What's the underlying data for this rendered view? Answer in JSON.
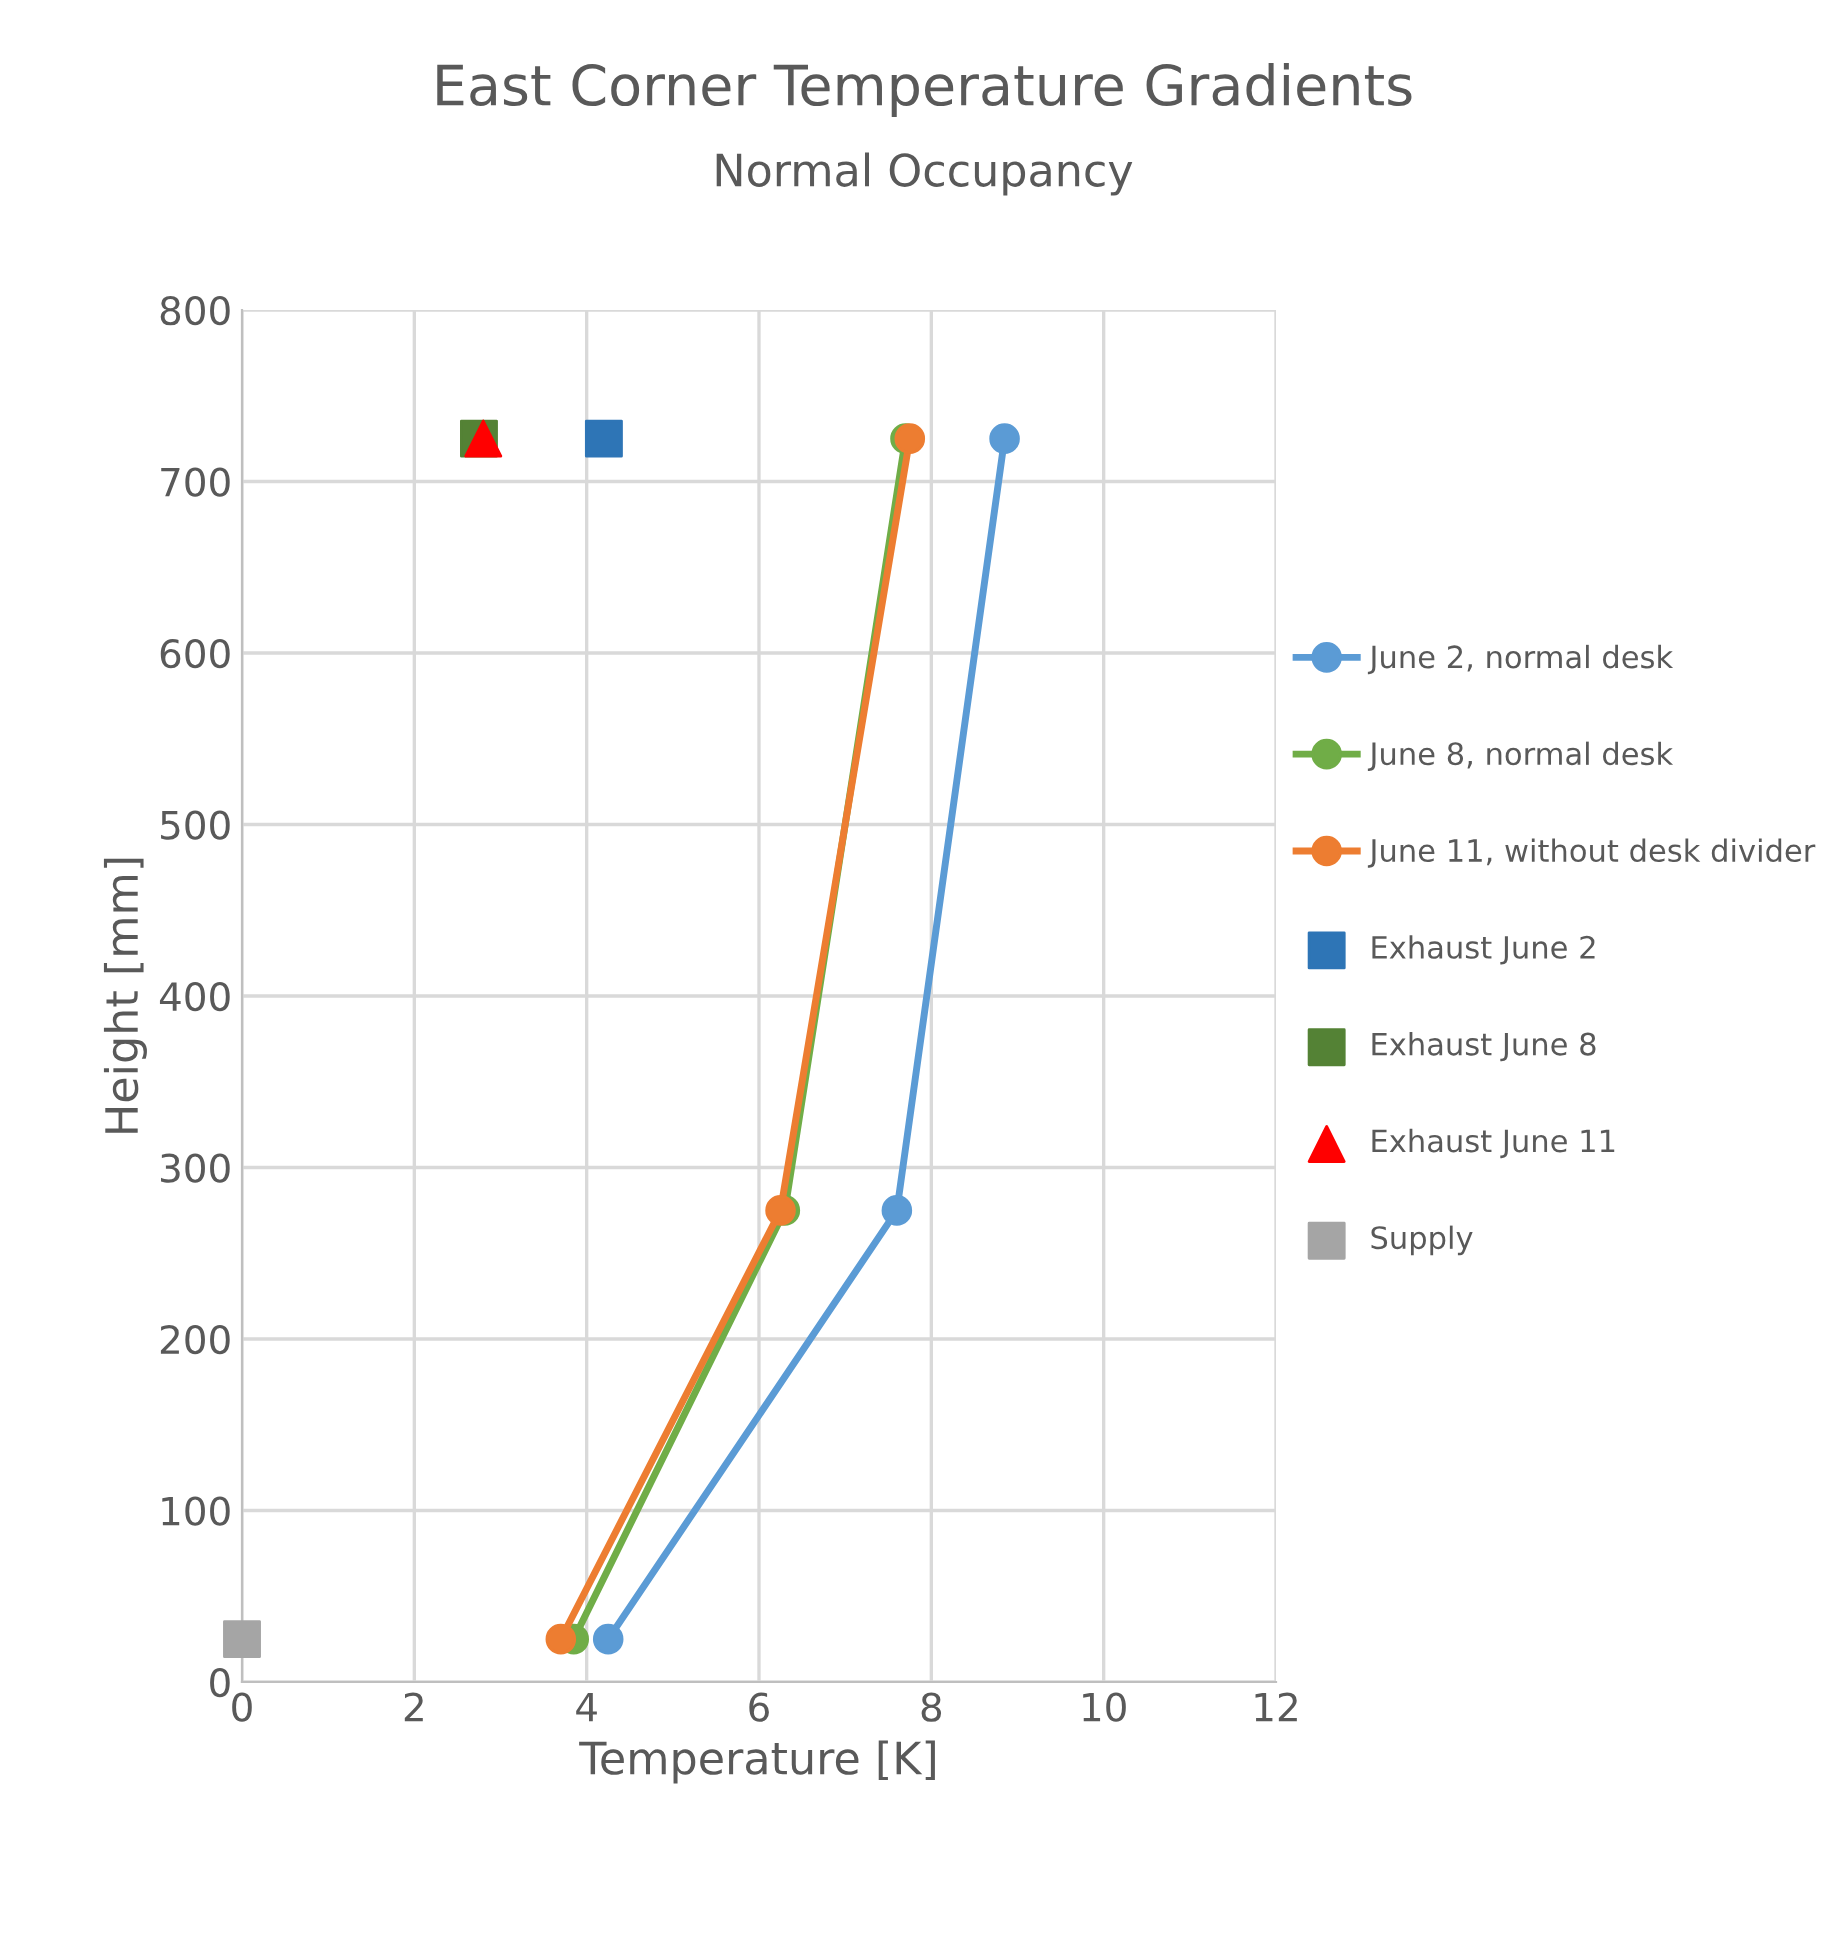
{
  "chart_data": {
    "type": "line",
    "title": "East Corner Temperature Gradients",
    "subtitle": "Normal Occupancy",
    "xlabel": "Temperature [K]",
    "ylabel": "Height [mm]",
    "xlim": [
      0,
      12
    ],
    "xticks": [
      0,
      2,
      4,
      6,
      8,
      10,
      12
    ],
    "ylim": [
      0,
      800
    ],
    "yticks": [
      0,
      100,
      200,
      300,
      400,
      500,
      600,
      700,
      800
    ],
    "grid": true,
    "legend": "right",
    "series": [
      {
        "name": "June 2, normal desk",
        "marker": "circle",
        "color": "#5b9bd5",
        "x": [
          4.25,
          7.6,
          8.85
        ],
        "values": [
          25,
          275,
          725
        ]
      },
      {
        "name": "June 8, normal desk",
        "marker": "circle",
        "color": "#70ad47",
        "x": [
          3.85,
          6.3,
          7.7
        ],
        "values": [
          25,
          275,
          725
        ]
      },
      {
        "name": "June 11, without desk divider",
        "marker": "circle",
        "color": "#ed7d31",
        "x": [
          3.7,
          6.25,
          7.75
        ],
        "values": [
          25,
          275,
          725
        ]
      },
      {
        "name": "Exhaust June 2",
        "type": "scatter",
        "marker": "square",
        "color": "#2e75b6",
        "x": [
          4.2
        ],
        "values": [
          725
        ]
      },
      {
        "name": "Exhaust June 8",
        "type": "scatter",
        "marker": "square",
        "color": "#548235",
        "x": [
          2.75
        ],
        "values": [
          725
        ]
      },
      {
        "name": "Exhaust June 11",
        "type": "scatter",
        "marker": "triangle",
        "color": "#ff0000",
        "x": [
          2.8
        ],
        "values": [
          725
        ]
      },
      {
        "name": "Supply",
        "type": "scatter",
        "marker": "square",
        "color": "#a5a5a5",
        "x": [
          0
        ],
        "values": [
          25
        ]
      }
    ]
  }
}
